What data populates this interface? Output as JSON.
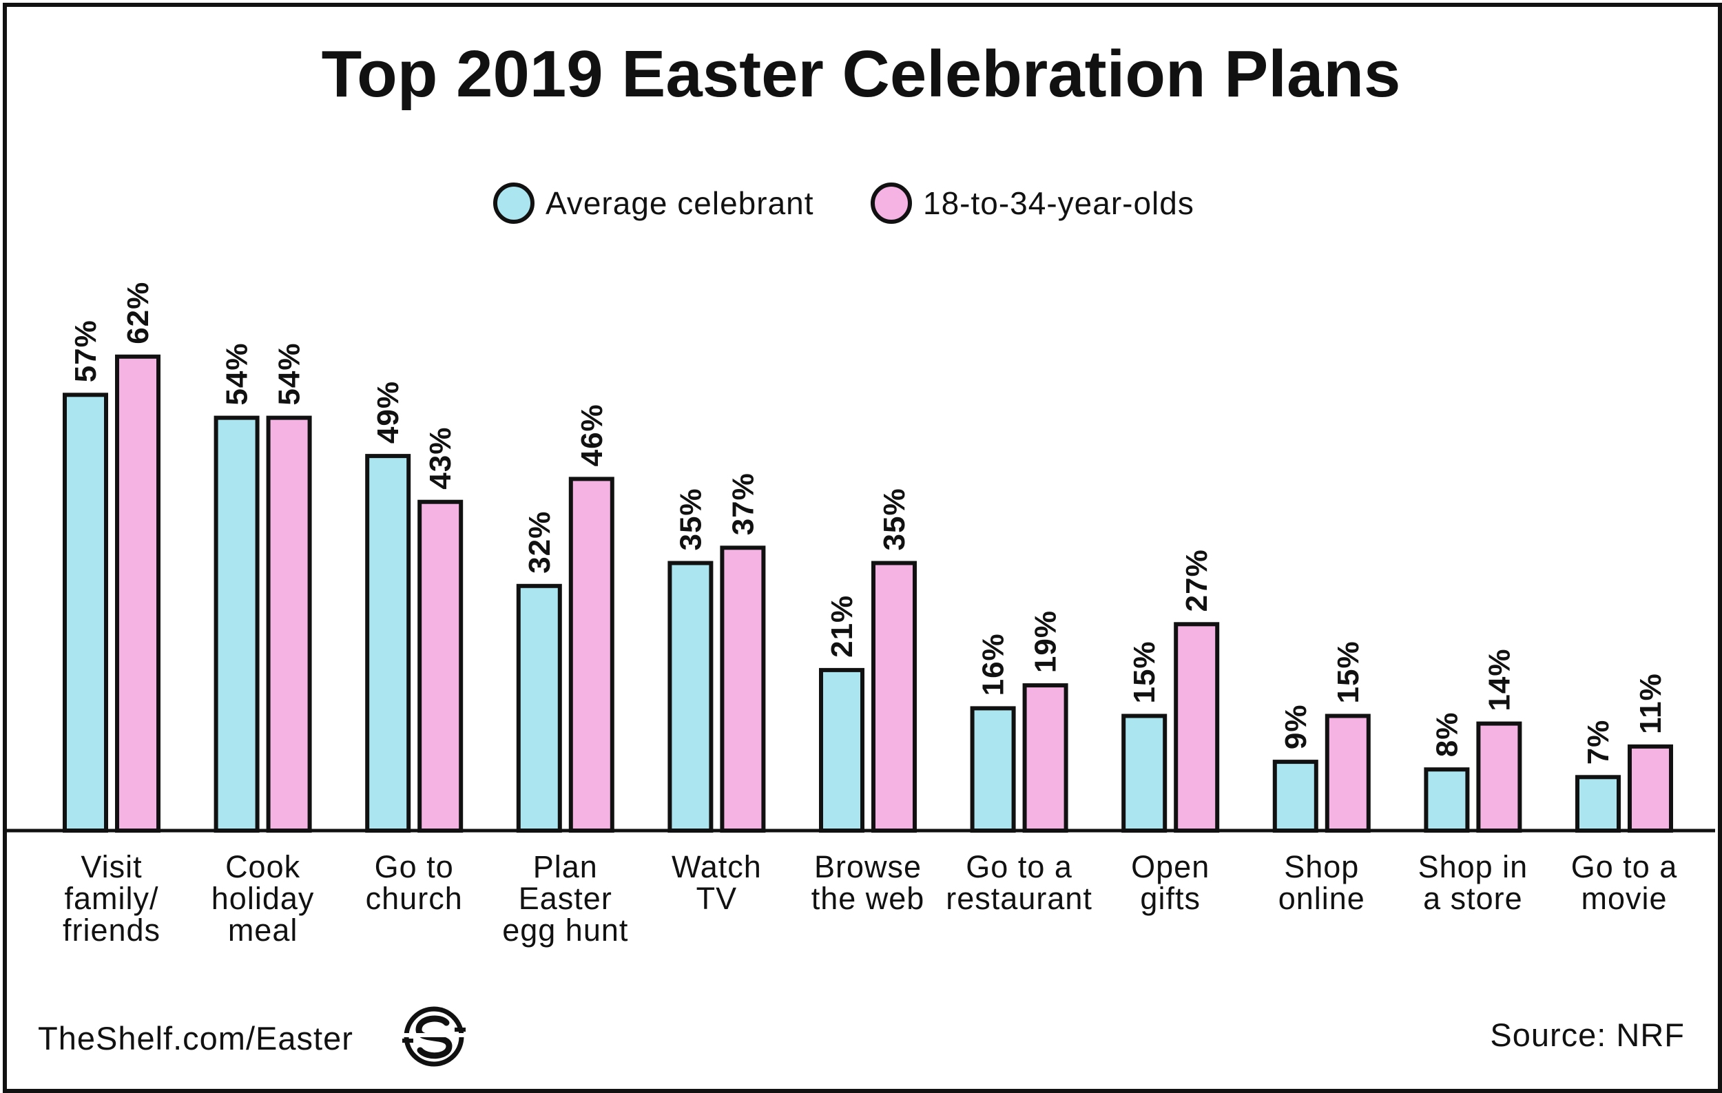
{
  "chart_data": {
    "type": "bar",
    "title": "Top 2019 Easter Celebration Plans",
    "categories": [
      [
        "Visit",
        "family/",
        "friends"
      ],
      [
        "Cook",
        "holiday",
        "meal"
      ],
      [
        "Go to",
        "church"
      ],
      [
        "Plan",
        "Easter",
        "egg hunt"
      ],
      [
        "Watch",
        "TV"
      ],
      [
        "Browse",
        "the web"
      ],
      [
        "Go to a",
        "restaurant"
      ],
      [
        "Open",
        "gifts"
      ],
      [
        "Shop",
        "online"
      ],
      [
        "Shop in",
        "a store"
      ],
      [
        "Go to a",
        "movie"
      ]
    ],
    "series": [
      {
        "name": "Average celebrant",
        "color": "#abe6f0",
        "values": [
          57,
          54,
          49,
          32,
          35,
          21,
          16,
          15,
          9,
          8,
          7
        ],
        "labels": [
          "57%",
          "54%",
          "49%",
          "32%",
          "35%",
          "21%",
          "16%",
          "15%",
          "9%",
          "8%",
          "7%"
        ]
      },
      {
        "name": "18-to-34-year-olds",
        "color": "#f5b3e4",
        "values": [
          62,
          54,
          43,
          46,
          37,
          35,
          19,
          27,
          15,
          14,
          11
        ],
        "labels": [
          "62%",
          "54%",
          "43%",
          "46%",
          "37%",
          "35%",
          "19%",
          "27%",
          "15%",
          "14%",
          "11%"
        ]
      }
    ],
    "xlabel": "",
    "ylabel": "",
    "ylim": [
      0,
      70
    ],
    "grid": false,
    "legend": "top-center",
    "bar_outline_color": "#111111"
  },
  "footer": {
    "website": "TheShelf.com/Easter",
    "source": "Source: NRF",
    "logo_icon": "theshelf-s-logo-icon"
  }
}
